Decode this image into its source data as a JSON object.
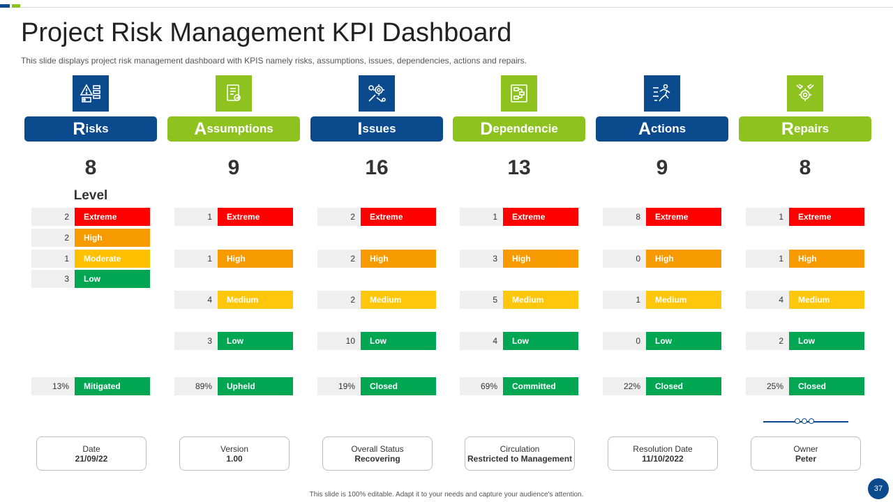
{
  "title": "Project Risk Management KPI Dashboard",
  "subtitle": "This slide displays project risk management dashboard with KPIS namely risks, assumptions, issues, dependencies, actions and repairs.",
  "colors": {
    "blue": "#0b4a8c",
    "green": "#8dc21f",
    "extreme": "#ff0000",
    "high": "#f79a00",
    "moderate": "#ffc000",
    "low": "#00a651"
  },
  "columns": [
    {
      "icon": "risk-warning-icon",
      "header_first": "R",
      "header_rest": "isks",
      "total": "8",
      "level_label": "Level",
      "rows": [
        {
          "num": "2",
          "label": "Extreme"
        },
        {
          "num": "2",
          "label": "High"
        },
        {
          "num": "1",
          "label": "Moderate"
        },
        {
          "num": "3",
          "label": "Low"
        }
      ],
      "status": {
        "num": "13%",
        "label": "Mitigated"
      },
      "info": {
        "label": "Date",
        "value": "21/09/22"
      }
    },
    {
      "icon": "assumption-document-icon",
      "header_first": "A",
      "header_rest": "ssumptions",
      "total": "9",
      "rows": [
        {
          "num": "1",
          "label": "Extreme"
        },
        {
          "num": "1",
          "label": "High"
        },
        {
          "num": "4",
          "label": "Medium"
        },
        {
          "num": "3",
          "label": "Low"
        }
      ],
      "status": {
        "num": "89%",
        "label": "Upheld"
      },
      "info": {
        "label": "Version",
        "value": "1.00"
      }
    },
    {
      "icon": "issues-gear-icon",
      "header_first": "I",
      "header_rest": "ssues",
      "total": "16",
      "rows": [
        {
          "num": "2",
          "label": "Extreme"
        },
        {
          "num": "2",
          "label": "High"
        },
        {
          "num": "2",
          "label": "Medium"
        },
        {
          "num": "10",
          "label": "Low"
        }
      ],
      "status": {
        "num": "19%",
        "label": "Closed"
      },
      "info": {
        "label": "Overall Status",
        "value": "Recovering"
      }
    },
    {
      "icon": "dependency-flowchart-icon",
      "header_first": "D",
      "header_rest": "ependencie",
      "total": "13",
      "rows": [
        {
          "num": "1",
          "label": "Extreme"
        },
        {
          "num": "3",
          "label": "High"
        },
        {
          "num": "5",
          "label": "Medium"
        },
        {
          "num": "4",
          "label": "Low"
        }
      ],
      "status": {
        "num": "69%",
        "label": "Committed"
      },
      "info": {
        "label": "Circulation",
        "value": "Restricted to Management"
      }
    },
    {
      "icon": "actions-runner-icon",
      "header_first": "A",
      "header_rest": "ctions",
      "total": "9",
      "rows": [
        {
          "num": "8",
          "label": "Extreme"
        },
        {
          "num": "0",
          "label": "High"
        },
        {
          "num": "1",
          "label": "Medium"
        },
        {
          "num": "0",
          "label": "Low"
        }
      ],
      "status": {
        "num": "22%",
        "label": "Closed"
      },
      "info": {
        "label": "Resolution Date",
        "value": "11/10/2022"
      }
    },
    {
      "icon": "repairs-wrench-gear-icon",
      "header_first": "R",
      "header_rest": "epairs",
      "total": "8",
      "rows": [
        {
          "num": "1",
          "label": "Extreme"
        },
        {
          "num": "1",
          "label": "High"
        },
        {
          "num": "4",
          "label": "Medium"
        },
        {
          "num": "2",
          "label": "Low"
        }
      ],
      "status": {
        "num": "25%",
        "label": "Closed"
      },
      "info": {
        "label": "Owner",
        "value": "Peter"
      }
    }
  ],
  "footer": "This slide is 100% editable.  Adapt it to your needs and capture your audience's attention.",
  "page_number": "37"
}
